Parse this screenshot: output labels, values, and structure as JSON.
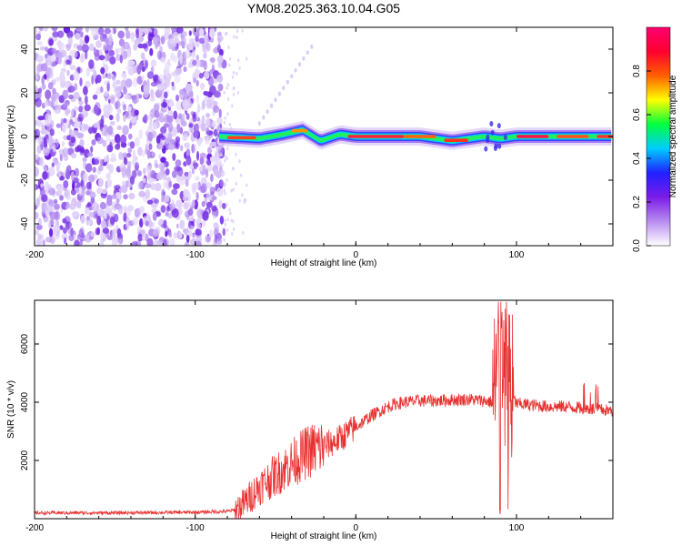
{
  "chart_data": [
    {
      "type": "heatmap",
      "title": "YM08.2025.363.10.04.G05",
      "xlabel": "Height of straight line (km)",
      "ylabel": "Frequency (Hz)",
      "xlim": [
        -200,
        160
      ],
      "ylim": [
        -50,
        50
      ],
      "xticks": [
        -200,
        -100,
        0,
        100
      ],
      "xtick_labels": [
        "-200",
        "-100",
        "0",
        "100"
      ],
      "yticks": [
        -40,
        -20,
        0,
        20,
        40
      ],
      "ytick_labels": [
        "-40",
        "-20",
        "0",
        "20",
        "40"
      ],
      "noise_region_x": [
        -200,
        -82
      ],
      "signal_region_x": [
        -85,
        160
      ],
      "signal_frequency_hz": 0,
      "ridge_points": [
        {
          "x": -85,
          "y": 0
        },
        {
          "x": -60,
          "y": -1
        },
        {
          "x": -45,
          "y": 1
        },
        {
          "x": -33,
          "y": 3
        },
        {
          "x": -22,
          "y": -2
        },
        {
          "x": -10,
          "y": 1
        },
        {
          "x": 0,
          "y": 0
        },
        {
          "x": 40,
          "y": 0
        },
        {
          "x": 60,
          "y": -2
        },
        {
          "x": 80,
          "y": 0
        },
        {
          "x": 90,
          "y": -1
        },
        {
          "x": 100,
          "y": 0
        },
        {
          "x": 160,
          "y": 0
        }
      ],
      "colorbar": {
        "label": "Normalized spectral amplitude",
        "range": [
          0,
          1
        ],
        "ticks": [
          "0.0",
          "0.2",
          "0.4",
          "0.6",
          "0.8"
        ],
        "tick_values": [
          0,
          0.2,
          0.4,
          0.6,
          0.8
        ],
        "colors": [
          "#ffffff",
          "#b98cf0",
          "#7b1ce8",
          "#2020ff",
          "#00ccff",
          "#00ff40",
          "#ffff00",
          "#ff6000",
          "#ff0030",
          "#ff0070"
        ]
      }
    },
    {
      "type": "line",
      "xlabel": "Height of straight line (km)",
      "ylabel": "SNR (10 * v/v)",
      "xlim": [
        -200,
        160
      ],
      "ylim": [
        0,
        7500
      ],
      "xticks": [
        -200,
        -100,
        0,
        100
      ],
      "xtick_labels": [
        "-200",
        "-100",
        "0",
        "100"
      ],
      "yticks": [
        2000,
        4000,
        6000
      ],
      "ytick_labels": [
        "2000",
        "4000",
        "6000"
      ],
      "color": "#e83030",
      "series": [
        {
          "name": "SNR",
          "x": [
            -200,
            -150,
            -100,
            -80,
            -75,
            -70,
            -65,
            -60,
            -55,
            -50,
            -45,
            -40,
            -35,
            -30,
            -25,
            -20,
            -15,
            -10,
            -5,
            0,
            5,
            10,
            15,
            20,
            25,
            30,
            40,
            50,
            60,
            70,
            80,
            85,
            88,
            90,
            92,
            94,
            96,
            100,
            110,
            120,
            130,
            140,
            150,
            160
          ],
          "y": [
            200,
            200,
            220,
            250,
            300,
            500,
            800,
            1100,
            1300,
            1500,
            1700,
            1900,
            2100,
            2300,
            2400,
            2500,
            2600,
            2750,
            2950,
            3150,
            3350,
            3550,
            3700,
            3850,
            3950,
            4000,
            4050,
            4050,
            4080,
            4100,
            4050,
            4000,
            5000,
            6500,
            4200,
            6800,
            4300,
            3950,
            3900,
            3850,
            3850,
            3800,
            3750,
            3700
          ]
        }
      ],
      "annotations": [
        {
          "x_range": [
            -75,
            -20
          ],
          "description": "strong oscillations"
        },
        {
          "x_range": [
            85,
            98
          ],
          "description": "large spikes up to ~7400 and down to ~0"
        }
      ]
    }
  ]
}
